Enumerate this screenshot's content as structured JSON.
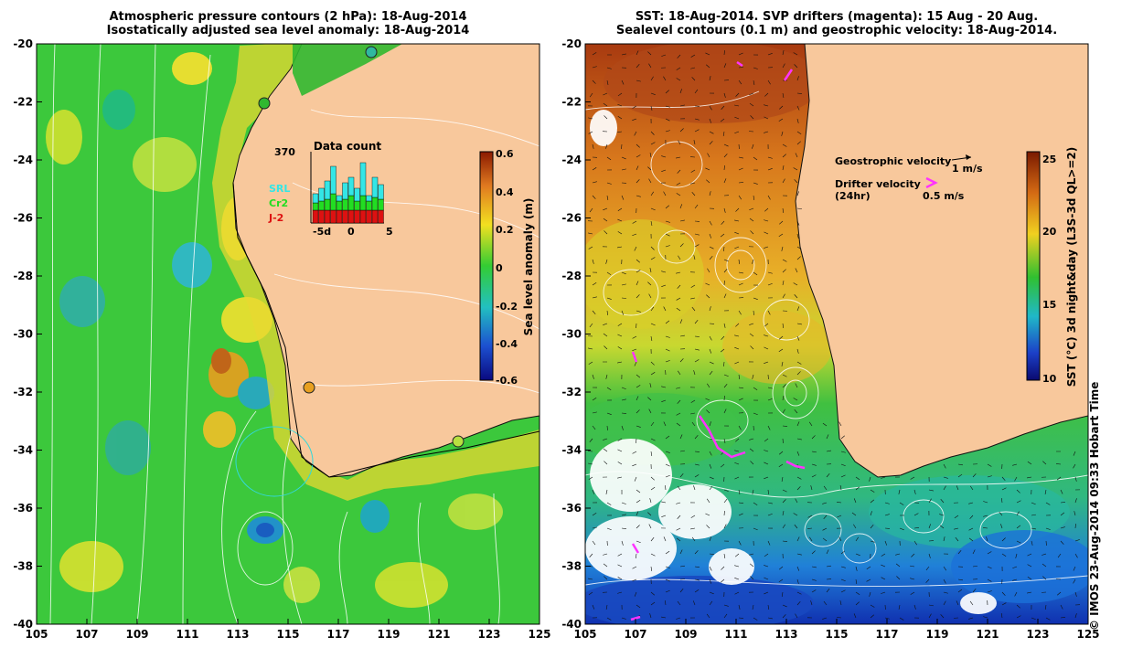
{
  "left_panel": {
    "title_line1": "Atmospheric pressure contours (2 hPa): 18-Aug-2014",
    "title_line2": "Isostatically adjusted sea level anomaly: 18-Aug-2014",
    "colorbar_label": "Sea level anomaly (m)",
    "colorbar_ticks": [
      "0.6",
      "0.4",
      "0.2",
      "0",
      "-0.2",
      "-0.4",
      "-0.6"
    ],
    "inset": {
      "title": "Data count",
      "max_count": "370",
      "legend": [
        {
          "label": "SRL",
          "color": "#33e6e6"
        },
        {
          "label": "Cr2",
          "color": "#22dd22"
        },
        {
          "label": "J-2",
          "color": "#dd1111"
        }
      ],
      "x_ticks": [
        "-5d",
        "0",
        "5"
      ]
    }
  },
  "right_panel": {
    "title_line1": "SST: 18-Aug-2014. SVP drifters (magenta): 15 Aug - 20 Aug.",
    "title_line2": "Sealevel contours (0.1 m) and geostrophic velocity: 18-Aug-2014.",
    "colorbar_label": "SST (°C) 3d night&day (L3S-3d QL>=2)",
    "colorbar_ticks": [
      "25",
      "20",
      "15",
      "10"
    ],
    "legend_geo": "Geostrophic velocity",
    "legend_geo_scale": "1 m/s",
    "legend_drifter": "Drifter velocity",
    "legend_drifter_sub": "(24hr)",
    "legend_drifter_scale": "0.5 m/s"
  },
  "axes": {
    "y_ticks": [
      "-20",
      "-22",
      "-24",
      "-26",
      "-28",
      "-30",
      "-32",
      "-34",
      "-36",
      "-38",
      "-40"
    ],
    "x_ticks": [
      "105",
      "107",
      "109",
      "111",
      "113",
      "115",
      "117",
      "119",
      "121",
      "123",
      "125"
    ]
  },
  "credit": "© IMOS 23-Aug-2014 09:33 Hobart Time",
  "colors": {
    "land": "#f8c89c",
    "sla_green": "#33cc33",
    "sst_orange": "#e08a20"
  }
}
